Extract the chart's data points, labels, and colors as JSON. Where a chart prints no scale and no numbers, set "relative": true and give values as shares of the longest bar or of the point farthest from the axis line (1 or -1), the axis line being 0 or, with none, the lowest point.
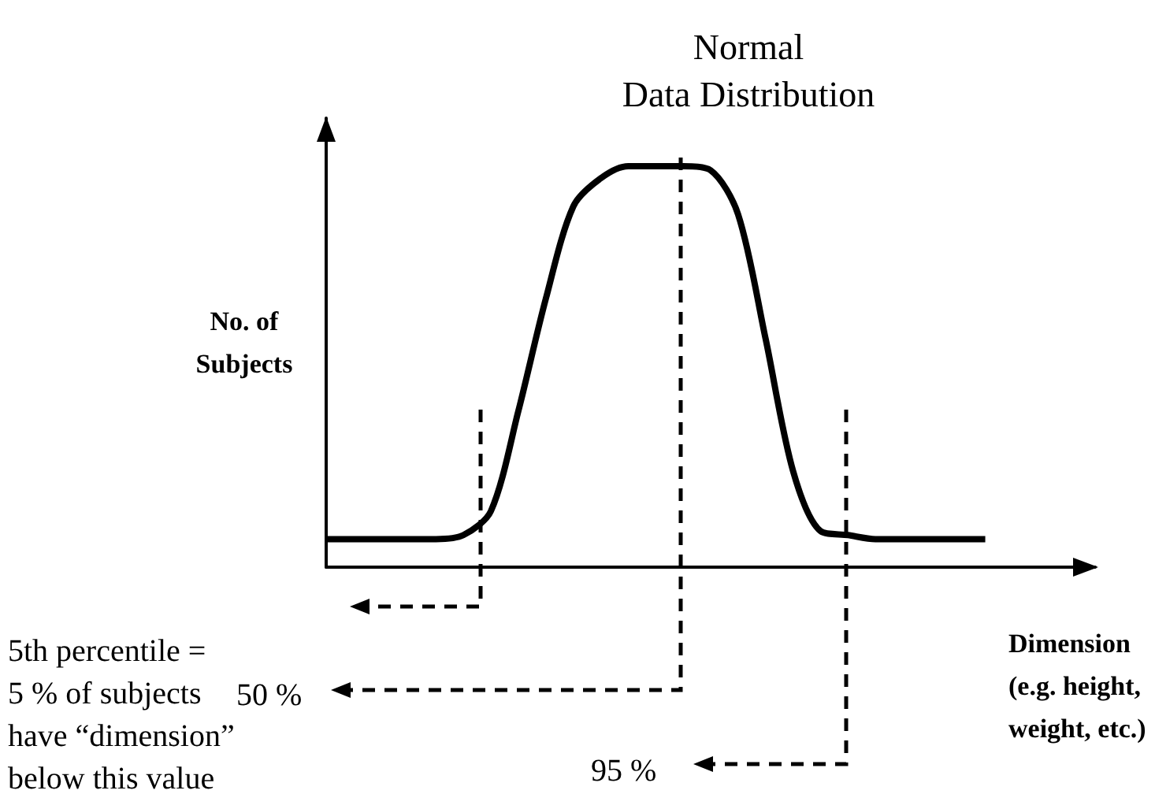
{
  "chart_data": {
    "type": "line",
    "relative": true,
    "title": "Normal\nData Distribution",
    "ylabel": "No. of\nSubjects",
    "xlabel": "Dimension\n(e.g. height,\nweight, etc.)",
    "categories": [
      null,
      null,
      null,
      null,
      null,
      null,
      null,
      null,
      null,
      null,
      null,
      null,
      null,
      null,
      null,
      null,
      null,
      null,
      null,
      null,
      null,
      null,
      null,
      null,
      null,
      null,
      null,
      null,
      null
    ],
    "series": [
      {
        "color": "#000000",
        "values": [
          0.07,
          0.07,
          0.07,
          0.07,
          0.07,
          0.08,
          0.14,
          0.39,
          0.67,
          0.9,
          0.97,
          1,
          1,
          1,
          0.99,
          0.88,
          0.57,
          0.24,
          0.09,
          0.08,
          0.07,
          0.07,
          0.07,
          0.07,
          0.07,
          null,
          null,
          null,
          null
        ]
      }
    ],
    "annotations": [
      "5th percentile =\n5 % of subjects\nhave “dimension”\nbelow this value",
      "50 %",
      "95 %"
    ],
    "marker": "none",
    "line_style": "solid",
    "grid": false
  }
}
